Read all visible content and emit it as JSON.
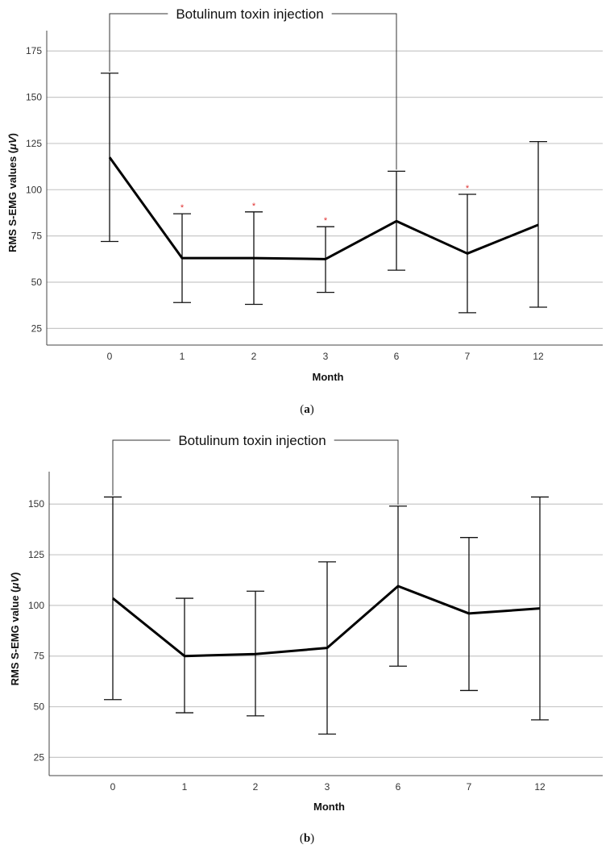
{
  "chart_data": [
    {
      "id": "a",
      "type": "line",
      "caption_letter": "a",
      "annotation": "Botulinum toxin injection",
      "annotation_span": [
        "0",
        "6"
      ],
      "xlabel": "Month",
      "ylabel": "RMS S-EMG values (",
      "ylabel_unit": "μV",
      "ylabel_close": ")",
      "categories": [
        "0",
        "1",
        "2",
        "3",
        "6",
        "7",
        "12"
      ],
      "series": [
        {
          "name": "mean",
          "values": [
            117.5,
            63,
            63,
            62.5,
            83,
            65.5,
            81
          ],
          "err_low": [
            72,
            39,
            38,
            44.5,
            56.5,
            33.5,
            36.5
          ],
          "err_high": [
            163,
            87,
            88,
            80,
            110,
            97.5,
            126
          ]
        }
      ],
      "significant": [
        "1",
        "2",
        "3",
        "7"
      ],
      "significance_marker": "*",
      "yticks": [
        25,
        50,
        75,
        100,
        125,
        150,
        175
      ],
      "ylim": [
        16,
        186
      ]
    },
    {
      "id": "b",
      "type": "line",
      "caption_letter": "b",
      "annotation": "Botulinum toxin injection",
      "annotation_span": [
        "0",
        "6"
      ],
      "xlabel": "Month",
      "ylabel": "RMS S-EMG value (",
      "ylabel_unit": "μV",
      "ylabel_close": ")",
      "categories": [
        "0",
        "1",
        "2",
        "3",
        "6",
        "7",
        "12"
      ],
      "series": [
        {
          "name": "mean",
          "values": [
            103.5,
            75,
            76,
            79,
            109.5,
            96,
            98.5
          ],
          "err_low": [
            53.5,
            47,
            45.5,
            36.5,
            70,
            58,
            43.5
          ],
          "err_high": [
            153.5,
            103.5,
            107,
            121.5,
            149,
            133.5,
            153.5
          ]
        }
      ],
      "significant": [],
      "significance_marker": "*",
      "yticks": [
        25,
        50,
        75,
        100,
        125,
        150
      ],
      "ylim": [
        16,
        166
      ]
    }
  ]
}
